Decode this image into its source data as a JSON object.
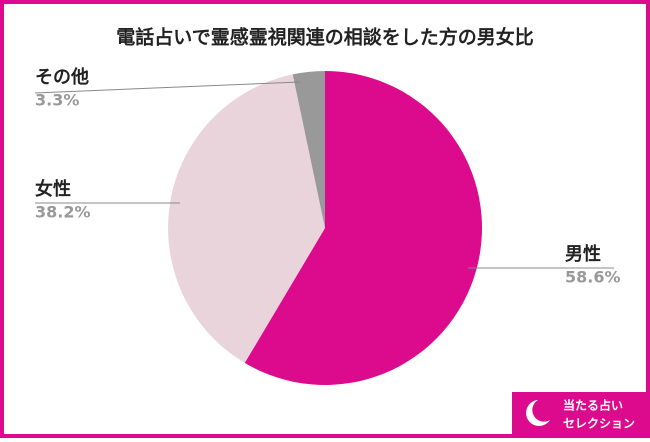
{
  "chart_data": {
    "type": "pie",
    "title": "電話占いで霊感霊視関連の相談をした方の男女比",
    "categories": [
      "男性",
      "女性",
      "その他"
    ],
    "values": [
      58.6,
      38.2,
      3.3
    ],
    "value_labels": [
      "58.6%",
      "38.2%",
      "3.3%"
    ],
    "colors": [
      "#dc0a8c",
      "#ead4dc",
      "#999999"
    ]
  },
  "logo": {
    "line1": "当たる占い",
    "line2": "セレクション"
  }
}
